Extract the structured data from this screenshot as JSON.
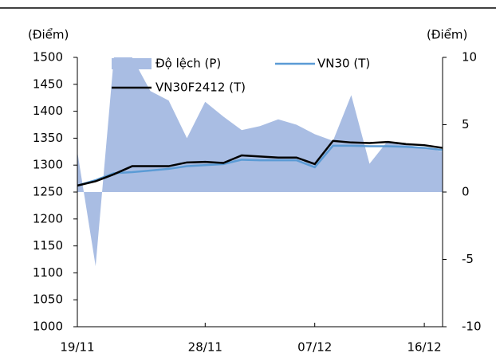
{
  "chart_data": {
    "type": "combo",
    "y_label": "(Điểm)",
    "y2_label": "(Điểm)",
    "categories": [
      "19/11",
      null,
      null,
      null,
      null,
      null,
      null,
      "28/11",
      null,
      null,
      null,
      null,
      null,
      "07/12",
      null,
      null,
      null,
      null,
      null,
      "16/12",
      null
    ],
    "ylim": [
      1000,
      1500
    ],
    "yticks": [
      1000,
      1050,
      1100,
      1150,
      1200,
      1250,
      1300,
      1350,
      1400,
      1450,
      1500
    ],
    "y2lim": [
      -10,
      10
    ],
    "y2ticks": [
      -10,
      -5,
      0,
      5,
      10
    ],
    "series": [
      {
        "name": "Độ lệch (P)",
        "type": "area",
        "axis": "y2",
        "color": "#a9bde3",
        "values": [
          3,
          -5.5,
          10,
          10,
          7.5,
          6.8,
          4,
          6.7,
          5.6,
          4.6,
          4.9,
          5.4,
          5,
          4.3,
          3.8,
          7.2,
          2.1,
          3.8,
          3.5,
          3.3,
          3
        ]
      },
      {
        "name": "VN30 (T)",
        "type": "line",
        "color": "#5b9bd5",
        "values": [
          1262,
          1272,
          1285,
          1287,
          1290,
          1293,
          1298,
          1300,
          1302,
          1310,
          1309,
          1309,
          1309,
          1296,
          1336,
          1336,
          1335,
          1335,
          1334,
          1332,
          1328
        ]
      },
      {
        "name": "VN30F2412 (T)",
        "type": "line",
        "color": "#000000",
        "values": [
          1262,
          1270,
          1283,
          1298,
          1298,
          1298,
          1305,
          1306,
          1304,
          1318,
          1316,
          1314,
          1314,
          1302,
          1345,
          1342,
          1341,
          1343,
          1339,
          1337,
          1332
        ]
      }
    ]
  }
}
